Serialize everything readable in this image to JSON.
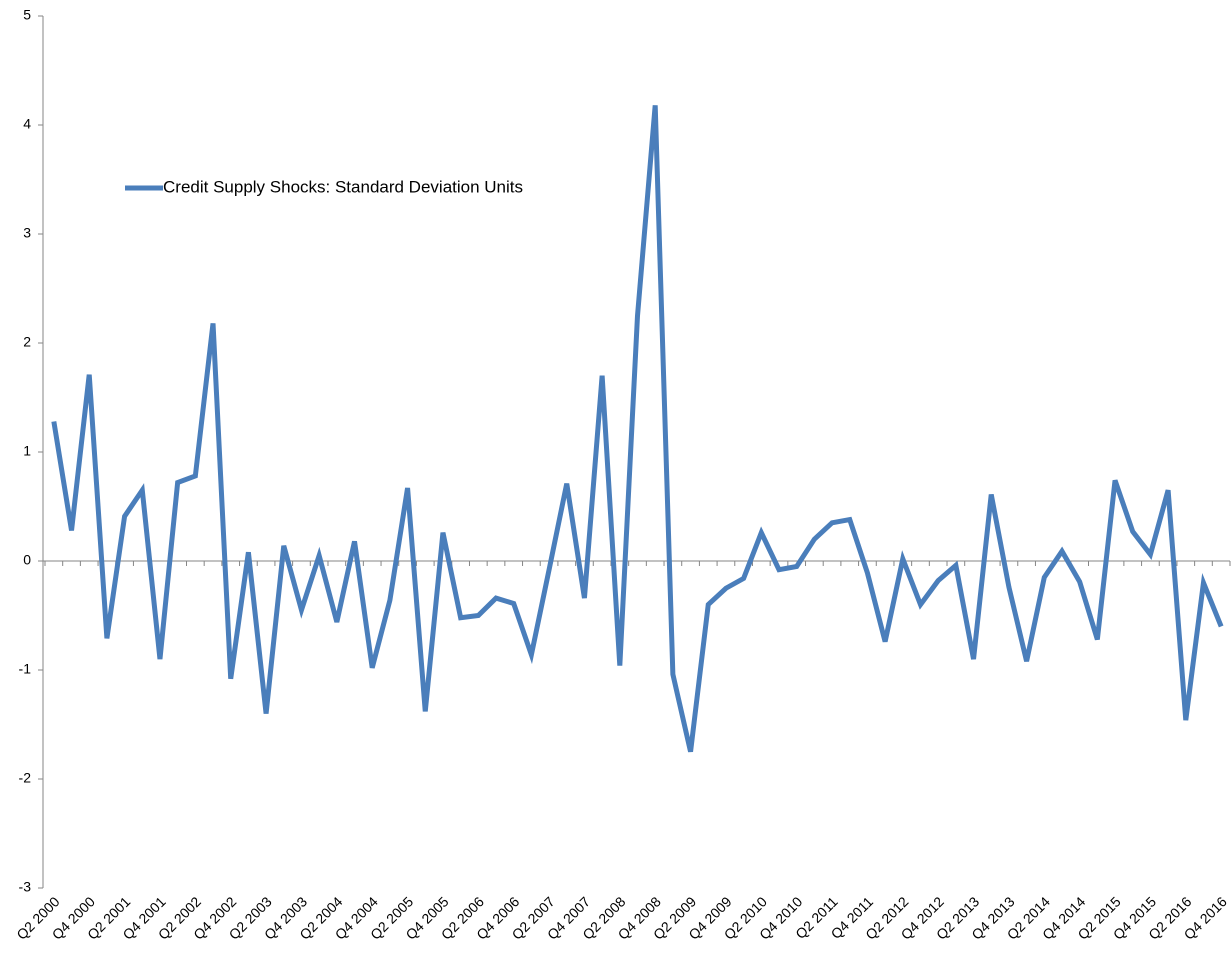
{
  "chart_data": {
    "type": "line",
    "categories": [
      "Q2 2000",
      null,
      "Q4 2000",
      null,
      "Q2 2001",
      null,
      "Q4 2001",
      null,
      "Q2 2002",
      null,
      "Q4 2002",
      null,
      "Q2 2003",
      null,
      "Q4 2003",
      null,
      "Q2 2004",
      null,
      "Q4 2004",
      null,
      "Q2 2005",
      null,
      "Q4 2005",
      null,
      "Q2 2006",
      null,
      "Q4 2006",
      null,
      "Q2 2007",
      null,
      "Q4 2007",
      null,
      "Q2 2008",
      null,
      "Q4 2008",
      null,
      "Q2 2009",
      null,
      "Q4 2009",
      null,
      "Q2 2010",
      null,
      "Q4 2010",
      null,
      "Q2 2011",
      null,
      "Q4 2011",
      null,
      "Q2 2012",
      null,
      "Q4 2012",
      null,
      "Q2 2013",
      null,
      "Q4 2013",
      null,
      "Q2 2014",
      null,
      "Q4 2014",
      null,
      "Q2 2015",
      null,
      "Q4 2015",
      null,
      "Q2 2016",
      null,
      "Q4 2016"
    ],
    "series": [
      {
        "name": "Credit Supply Shocks: Standard Deviation Units",
        "color": "#4a7ebb",
        "values": [
          1.28,
          0.28,
          1.71,
          -0.71,
          0.41,
          0.65,
          -0.9,
          0.72,
          0.78,
          2.18,
          -1.08,
          0.08,
          -1.4,
          0.14,
          -0.45,
          0.05,
          -0.56,
          0.18,
          -0.98,
          -0.36,
          0.67,
          -1.38,
          0.26,
          -0.52,
          -0.5,
          -0.34,
          -0.39,
          -0.86,
          -0.08,
          0.71,
          -0.34,
          1.7,
          -0.96,
          2.25,
          4.18,
          -1.04,
          -1.75,
          -0.4,
          -0.25,
          -0.16,
          0.26,
          -0.08,
          -0.05,
          0.2,
          0.35,
          0.38,
          -0.11,
          -0.74,
          0.02,
          -0.4,
          -0.18,
          -0.04,
          -0.9,
          0.61,
          -0.24,
          -0.92,
          -0.15,
          0.09,
          -0.19,
          -0.72,
          0.74,
          0.27,
          0.06,
          0.65,
          -1.46,
          -0.2,
          -0.6
        ]
      }
    ],
    "ylim": [
      -3,
      5
    ],
    "yticks": [
      -3,
      -2,
      -1,
      0,
      1,
      2,
      3,
      4,
      5
    ],
    "grid": false,
    "legend": "upper left"
  }
}
